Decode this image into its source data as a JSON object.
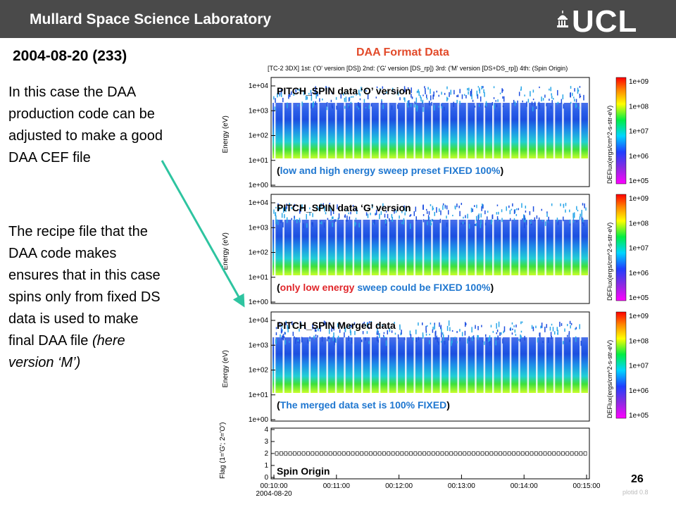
{
  "header": {
    "org": "Mullard Space Science Laboratory",
    "logo": "UCL"
  },
  "slide": {
    "date": "2004-08-20 (233)",
    "para1": "In this case the DAA production code can be adjusted to make a good DAA CEF file",
    "para2": "The recipe file that the DAA code makes ensures that in this case spins only from fixed DS data is used to make final DAA file",
    "para2_italic": "(here version ‘M’)",
    "format_title": "DAA Format Data",
    "page_number": "26",
    "plot_id": "plotid 0.8"
  },
  "chart_data": {
    "type": "heatmap",
    "plot_title": "[TC-2 3DX] 1st: ('O' version [DS]) 2nd: ('G' version [DS_rp]) 3rd: ('M' version [DS+DS_rp]) 4th: (Spin Origin)",
    "y_ticks": [
      "1e+00",
      "1e+01",
      "1e+02",
      "1e+03",
      "1e+04"
    ],
    "ylabel_energy": "Energy (eV)",
    "colorbar_ticks": [
      "1e+05",
      "1e+06",
      "1e+07",
      "1e+08",
      "1e+09"
    ],
    "colorbar_label": "DEFlux(ergs/cm^2-s-str-eV)",
    "panels": [
      {
        "name": "PITCH_SPIN data ‘O’ version",
        "annotation": [
          [
            "(",
            "#000"
          ],
          [
            "low and high energy sweep preset FIXED 100%",
            "#1f77d0"
          ],
          [
            ")",
            "#000"
          ]
        ]
      },
      {
        "name": "PITCH_SPIN data ‘G’ version",
        "annotation": [
          [
            "(",
            "#000"
          ],
          [
            "only low energy",
            "#e0262a"
          ],
          [
            " sweep could be FIXED 100%",
            "#1f77d0"
          ],
          [
            ")",
            "#000"
          ]
        ]
      },
      {
        "name": "PITCH_SPIN Merged data",
        "annotation": [
          [
            "(",
            "#000"
          ],
          [
            "The merged data set is 100% FIXED",
            "#1f77d0"
          ],
          [
            ")",
            "#000"
          ]
        ]
      }
    ],
    "flag_panel": {
      "name": "Spin Origin",
      "ylabel": "Flag (1='G'; 2='O')",
      "y_ticks": [
        "0",
        "1",
        "2",
        "3",
        "4"
      ],
      "flag_value": 2
    },
    "x_ticks": [
      "00:10:00",
      "00:11:00",
      "00:12:00",
      "00:13:00",
      "00:14:00",
      "00:15:00"
    ],
    "x_date": "2004-08-20"
  }
}
